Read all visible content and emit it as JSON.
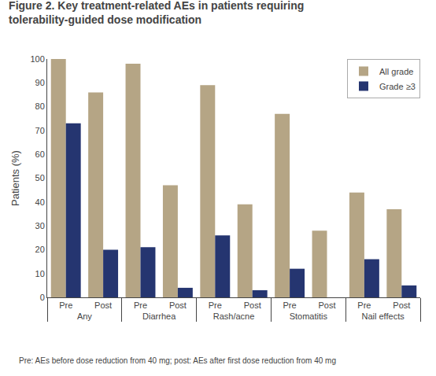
{
  "chart_data": {
    "type": "bar",
    "title": "Figure 2. Key treatment-related AEs in patients requiring\ntolerability-guided dose modification",
    "footnote": "Pre: AEs before dose reduction from 40 mg; post: AEs after first dose reduction from 40 mg",
    "ylabel": "Patients (%)",
    "category_groups": [
      "Any",
      "Diarrhea",
      "Rash/acne",
      "Stomatitis",
      "Nail effects"
    ],
    "categories": [
      "Pre",
      "Post",
      "Pre",
      "Post",
      "Pre",
      "Post",
      "Pre",
      "Post",
      "Pre",
      "Post"
    ],
    "series": [
      {
        "name": "All grade",
        "color": "#b5a585",
        "values": [
          100,
          86,
          98,
          47,
          89,
          39,
          77,
          28,
          44,
          37
        ]
      },
      {
        "name": "Grade ≥3",
        "color": "#253570",
        "values": [
          73,
          20,
          21,
          4,
          26,
          3,
          12,
          0,
          16,
          5
        ]
      }
    ],
    "ylim": [
      0,
      100
    ],
    "yticks": [
      0,
      10,
      20,
      30,
      40,
      50,
      60,
      70,
      80,
      90,
      100
    ],
    "grid": false,
    "legend": "upper right"
  }
}
